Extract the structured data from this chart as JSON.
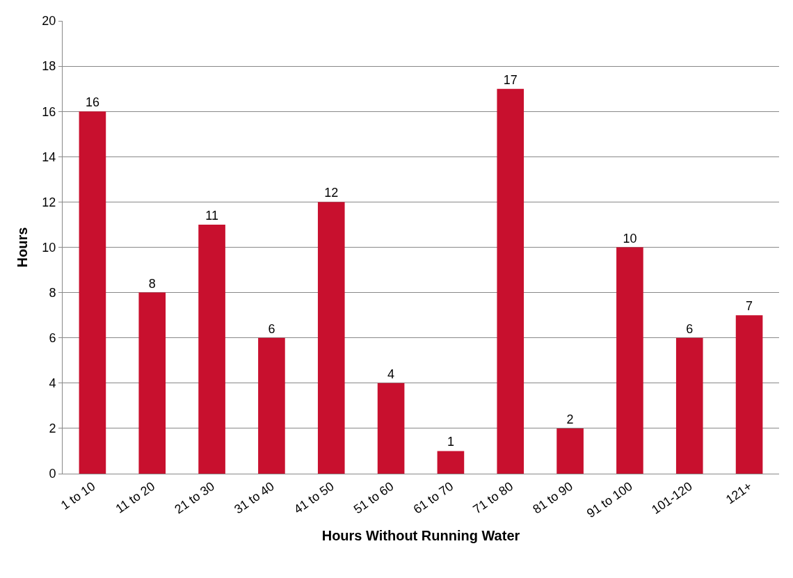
{
  "chart_data": {
    "type": "bar",
    "xlabel": "Hours Without Running Water",
    "ylabel": "Hours",
    "categories": [
      "1 to 10",
      "11 to 20",
      "21 to 30",
      "31 to 40",
      "41 to 50",
      "51 to 60",
      "61 to 70",
      "71 to 80",
      "81 to 90",
      "91 to 100",
      "101-120",
      "121+"
    ],
    "values": [
      16,
      8,
      11,
      6,
      12,
      4,
      1,
      17,
      2,
      10,
      6,
      7
    ],
    "color": "#c8102e",
    "ylim": [
      0,
      20
    ],
    "yticks": [
      0,
      2,
      4,
      6,
      8,
      10,
      12,
      14,
      16,
      18,
      20
    ],
    "grid": "y",
    "data_labels": true,
    "legend": false
  }
}
